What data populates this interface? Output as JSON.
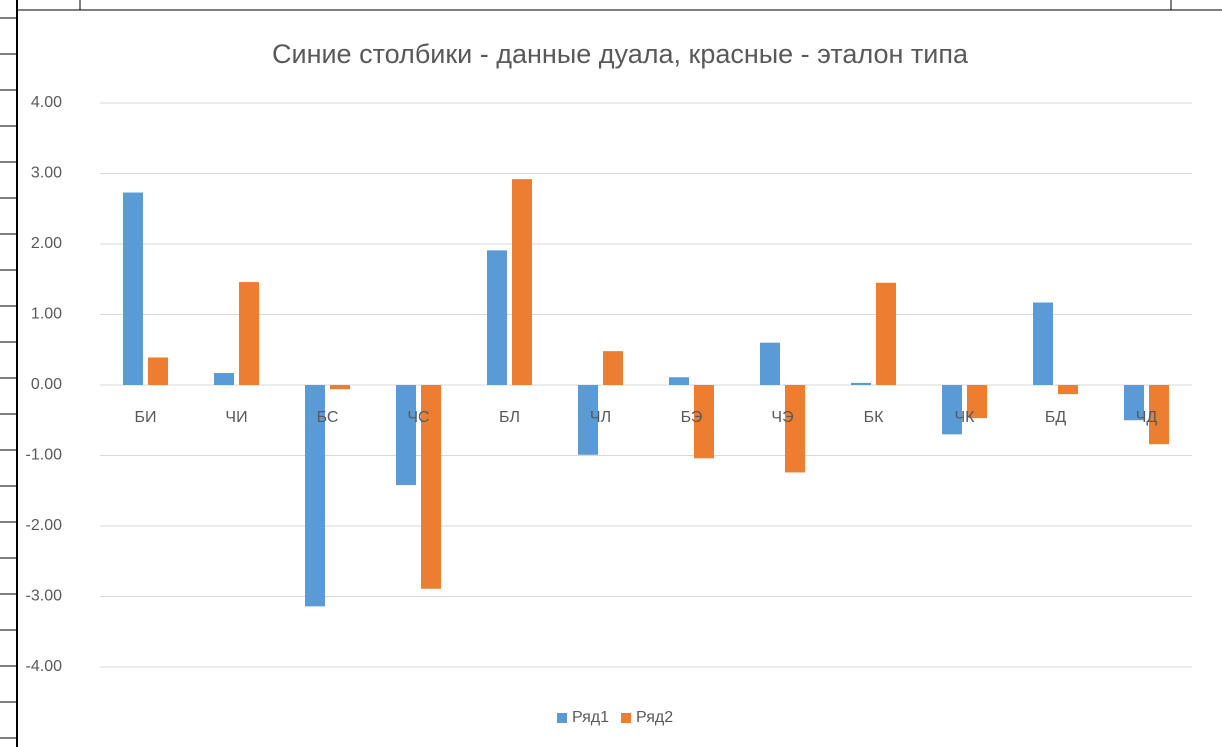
{
  "chart_data": {
    "type": "bar",
    "title": "Синие столбики - данные дуала, красные - эталон типа",
    "categories": [
      "БИ",
      "ЧИ",
      "БС",
      "ЧС",
      "БЛ",
      "ЧЛ",
      "БЭ",
      "ЧЭ",
      "БК",
      "ЧК",
      "БД",
      "ЧД"
    ],
    "series": [
      {
        "name": "Ряд1",
        "color": "#5b9bd5",
        "values": [
          2.73,
          0.17,
          -3.14,
          -1.42,
          1.91,
          -0.99,
          0.11,
          0.6,
          0.03,
          -0.7,
          1.17,
          -0.5
        ]
      },
      {
        "name": "Ряд2",
        "color": "#ed7d31",
        "values": [
          0.39,
          1.46,
          -0.06,
          -2.89,
          2.92,
          0.48,
          -1.04,
          -1.24,
          1.45,
          -0.47,
          -0.13,
          -0.84
        ]
      }
    ],
    "ylim": [
      -4,
      4
    ],
    "yticks": [
      {
        "value": 4,
        "label": "4.00"
      },
      {
        "value": 3,
        "label": "3.00"
      },
      {
        "value": 2,
        "label": "2.00"
      },
      {
        "value": 1,
        "label": "1.00"
      },
      {
        "value": 0,
        "label": "0.00"
      },
      {
        "value": -1,
        "label": "-1.00"
      },
      {
        "value": -2,
        "label": "-2.00"
      },
      {
        "value": -3,
        "label": "-3.00"
      },
      {
        "value": -4,
        "label": "-4.00"
      }
    ],
    "grid": true,
    "legend": "bottom"
  }
}
